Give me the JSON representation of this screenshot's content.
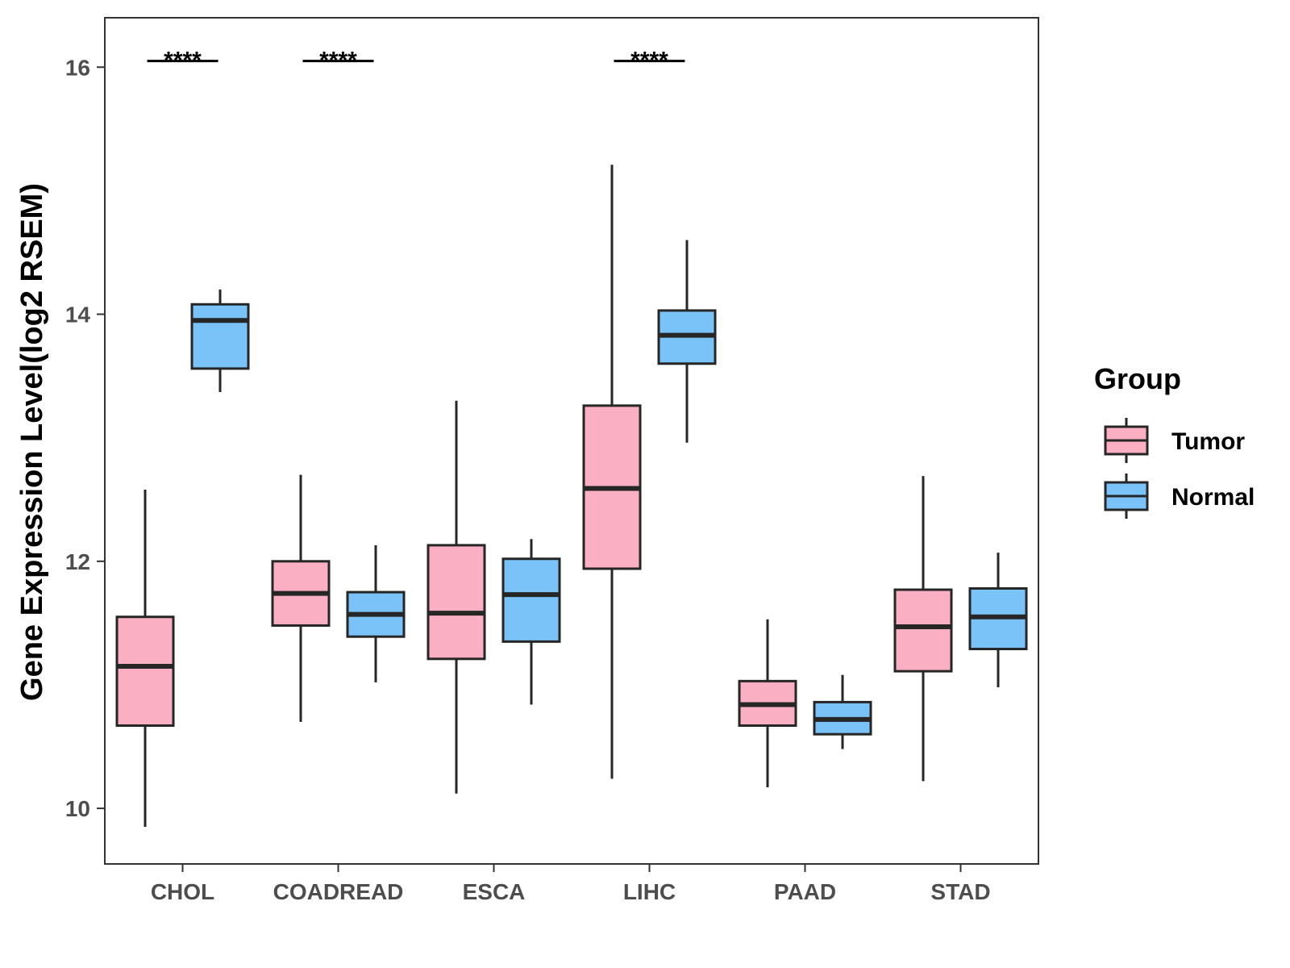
{
  "chart_data": {
    "type": "boxplot",
    "title": "",
    "xlabel": "",
    "ylabel": "Gene Expression Level(log2 RSEM)",
    "ylim": [
      9.55,
      16.4
    ],
    "yticks": [
      10,
      12,
      14,
      16
    ],
    "grid": false,
    "legend": {
      "title": "Group",
      "placement": "right",
      "entries": [
        {
          "name": "Tumor",
          "color": "#FAB0C2"
        },
        {
          "name": "Normal",
          "color": "#7AC3F9"
        }
      ]
    },
    "categories": [
      "CHOL",
      "COADREAD",
      "ESCA",
      "LIHC",
      "PAAD",
      "STAD"
    ],
    "series": [
      {
        "name": "Tumor",
        "color": "#FAB0C2",
        "boxes": [
          {
            "min": 9.85,
            "q1": 10.67,
            "median": 11.15,
            "q3": 11.55,
            "max": 12.58
          },
          {
            "min": 10.7,
            "q1": 11.48,
            "median": 11.74,
            "q3": 12.0,
            "max": 12.7
          },
          {
            "min": 10.12,
            "q1": 11.21,
            "median": 11.58,
            "q3": 12.13,
            "max": 13.3
          },
          {
            "min": 10.24,
            "q1": 11.94,
            "median": 12.59,
            "q3": 13.26,
            "max": 15.21
          },
          {
            "min": 10.17,
            "q1": 10.67,
            "median": 10.84,
            "q3": 11.03,
            "max": 11.53
          },
          {
            "min": 10.22,
            "q1": 11.11,
            "median": 11.47,
            "q3": 11.77,
            "max": 12.69
          }
        ]
      },
      {
        "name": "Normal",
        "color": "#7AC3F9",
        "boxes": [
          {
            "min": 13.37,
            "q1": 13.56,
            "median": 13.95,
            "q3": 14.08,
            "max": 14.2
          },
          {
            "min": 11.02,
            "q1": 11.39,
            "median": 11.57,
            "q3": 11.75,
            "max": 12.13
          },
          {
            "min": 10.84,
            "q1": 11.35,
            "median": 11.73,
            "q3": 12.02,
            "max": 12.18
          },
          {
            "min": 12.96,
            "q1": 13.6,
            "median": 13.83,
            "q3": 14.03,
            "max": 14.6
          },
          {
            "min": 10.48,
            "q1": 10.6,
            "median": 10.72,
            "q3": 10.86,
            "max": 11.08
          },
          {
            "min": 10.98,
            "q1": 11.29,
            "median": 11.55,
            "q3": 11.78,
            "max": 12.07
          }
        ]
      }
    ],
    "annotations": [
      {
        "category": "CHOL",
        "label": "****"
      },
      {
        "category": "COADREAD",
        "label": "****"
      },
      {
        "category": "LIHC",
        "label": "****"
      }
    ]
  }
}
